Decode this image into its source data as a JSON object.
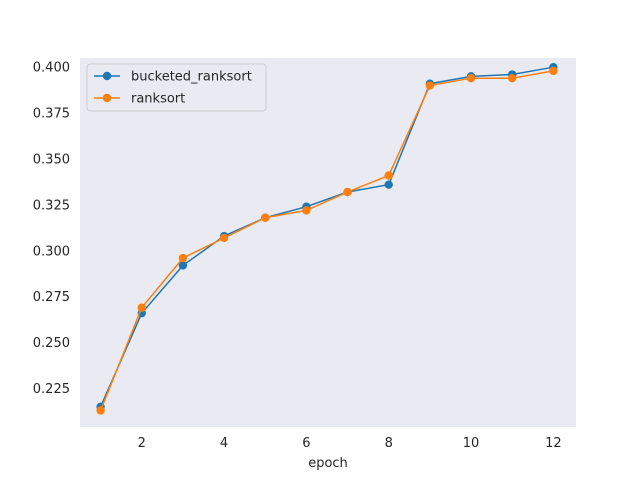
{
  "chart_data": {
    "type": "line",
    "title": "",
    "xlabel": "epoch",
    "ylabel": "",
    "x": [
      1,
      2,
      3,
      4,
      5,
      6,
      7,
      8,
      9,
      10,
      11,
      12
    ],
    "xlim": [
      0.5,
      12.55
    ],
    "ylim": [
      0.204,
      0.405
    ],
    "xticks": [
      2,
      4,
      6,
      8,
      10,
      12
    ],
    "yticks": [
      0.225,
      0.25,
      0.275,
      0.3,
      0.325,
      0.35,
      0.375,
      0.4
    ],
    "ytick_labels": [
      "0.225",
      "0.250",
      "0.275",
      "0.300",
      "0.325",
      "0.350",
      "0.375",
      "0.400"
    ],
    "grid": false,
    "legend_position": "upper-left",
    "background": "#eaeaf2",
    "series": [
      {
        "name": "bucketed_ranksort",
        "color": "#1f77b4",
        "marker": "circle",
        "values": [
          0.215,
          0.266,
          0.292,
          0.308,
          0.318,
          0.324,
          0.332,
          0.336,
          0.391,
          0.395,
          0.396,
          0.4
        ]
      },
      {
        "name": "ranksort",
        "color": "#ff7f0e",
        "marker": "circle",
        "values": [
          0.213,
          0.269,
          0.296,
          0.307,
          0.318,
          0.322,
          0.332,
          0.341,
          0.39,
          0.394,
          0.394,
          0.398
        ]
      }
    ]
  }
}
